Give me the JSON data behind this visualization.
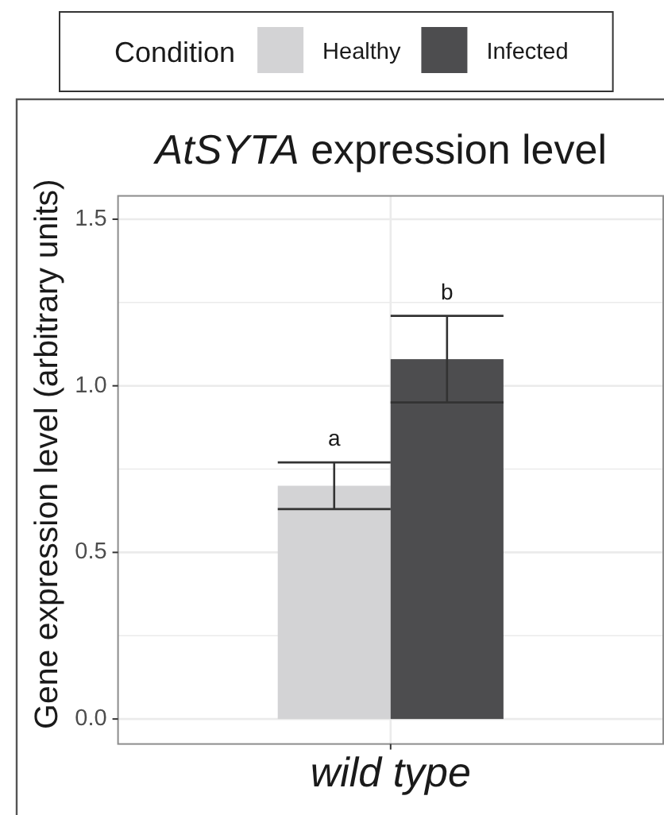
{
  "chart_data": {
    "type": "bar",
    "title": "AtSYTA expression level",
    "ylabel": "Gene expression level (arbitrary units)",
    "legend_title": "Condition",
    "categories": [
      "wild type"
    ],
    "series": [
      {
        "name": "Healthy",
        "color": "#d3d3d5",
        "values": [
          0.7
        ],
        "errors": [
          0.07
        ]
      },
      {
        "name": "Infected",
        "color": "#4d4d4f",
        "values": [
          1.08
        ],
        "errors": [
          0.13
        ]
      }
    ],
    "ylim": [
      -0.075,
      1.57
    ],
    "yticks": [
      {
        "value": 0,
        "label": "0.0"
      },
      {
        "value": 0.25,
        "label": null
      },
      0.5,
      {
        "value": 0.75,
        "label": null
      },
      {
        "value": 1,
        "label": "1.0"
      },
      {
        "value": 1.25,
        "label": null
      },
      1.5
    ],
    "grid": true,
    "legend": "top",
    "annotations": [
      "a",
      "b"
    ]
  }
}
